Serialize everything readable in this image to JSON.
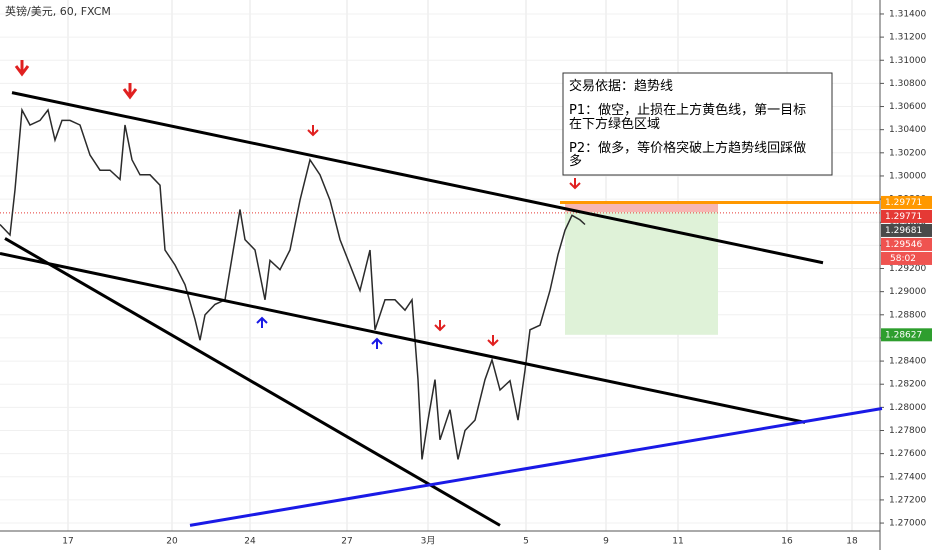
{
  "header": "英镑/美元, 60, FXCM",
  "chart_data": {
    "type": "line",
    "xlim": [
      0,
      176
    ],
    "ylim": [
      1.2694,
      1.315
    ],
    "xticks": [
      {
        "value": 13.6,
        "label": "17"
      },
      {
        "value": 34.4,
        "label": "20"
      },
      {
        "value": 50,
        "label": "24"
      },
      {
        "value": 69.4,
        "label": "27"
      },
      {
        "value": 85.6,
        "label": "3月"
      },
      {
        "value": 105.2,
        "label": "5"
      },
      {
        "value": 121.2,
        "label": "9"
      },
      {
        "value": 135.6,
        "label": "11"
      },
      {
        "value": 157.4,
        "label": "16"
      },
      {
        "value": 170.4,
        "label": "18"
      }
    ],
    "yticks": [
      {
        "value": 1.27,
        "label": "1.27000"
      },
      {
        "value": 1.272,
        "label": "1.27200"
      },
      {
        "value": 1.274,
        "label": "1.27400"
      },
      {
        "value": 1.276,
        "label": "1.27600"
      },
      {
        "value": 1.278,
        "label": "1.27800"
      },
      {
        "value": 1.28,
        "label": "1.28000"
      },
      {
        "value": 1.282,
        "label": "1.28200"
      },
      {
        "value": 1.284,
        "label": "1.28400"
      },
      {
        "value": 1.286,
        "label": "1.28600"
      },
      {
        "value": 1.288,
        "label": "1.28800"
      },
      {
        "value": 1.29,
        "label": "1.29000"
      },
      {
        "value": 1.292,
        "label": "1.29200"
      },
      {
        "value": 1.294,
        "label": "1.29400"
      },
      {
        "value": 1.296,
        "label": "1.29600"
      },
      {
        "value": 1.298,
        "label": "1.29800"
      },
      {
        "value": 1.3,
        "label": "1.30000"
      },
      {
        "value": 1.302,
        "label": "1.30200"
      },
      {
        "value": 1.304,
        "label": "1.30400"
      },
      {
        "value": 1.306,
        "label": "1.30600"
      },
      {
        "value": 1.308,
        "label": "1.30800"
      },
      {
        "value": 1.31,
        "label": "1.31000"
      },
      {
        "value": 1.312,
        "label": "1.31200"
      },
      {
        "value": 1.314,
        "label": "1.31400"
      }
    ],
    "grid": true,
    "series": [
      {
        "color": "#2b2b2b",
        "x": [
          0,
          2,
          3,
          4.4,
          6,
          8,
          9.6,
          11,
          12.4,
          14,
          16,
          18,
          20,
          22,
          24,
          25,
          26.4,
          28,
          30,
          32,
          33,
          35,
          37,
          39,
          40,
          41,
          43,
          45,
          47,
          48,
          49,
          51,
          53,
          54,
          56,
          58,
          60,
          62,
          64,
          66,
          68,
          70,
          72,
          74,
          75,
          77,
          79,
          81,
          82.4,
          83.6,
          84.4,
          85.6,
          87,
          88,
          90,
          91.6,
          93,
          95,
          97,
          98.4,
          100,
          102,
          103.6,
          105,
          106,
          108,
          110,
          111.6,
          113,
          114.4,
          116,
          117
        ],
        "values": [
          1.2958,
          1.2949,
          1.2988,
          1.3057,
          1.3044,
          1.3048,
          1.3057,
          1.3031,
          1.3048,
          1.3048,
          1.3044,
          1.3018,
          1.3005,
          1.3005,
          1.2997,
          1.3044,
          1.3014,
          1.3001,
          1.3001,
          1.2992,
          1.2936,
          1.2923,
          1.2906,
          1.2876,
          1.2858,
          1.288,
          1.2889,
          1.2893,
          1.2945,
          1.2971,
          1.2945,
          1.2936,
          1.2893,
          1.2927,
          1.2919,
          1.2936,
          1.2979,
          1.3014,
          1.3001,
          1.2979,
          1.2945,
          1.2923,
          1.2901,
          1.2936,
          1.2867,
          1.2893,
          1.2893,
          1.2884,
          1.2893,
          1.2824,
          1.2755,
          1.2789,
          1.2824,
          1.2772,
          1.2798,
          1.2755,
          1.278,
          1.2789,
          1.2824,
          1.2841,
          1.2815,
          1.2823,
          1.2789,
          1.2832,
          1.2867,
          1.2871,
          1.2901,
          1.2932,
          1.2953,
          1.2966,
          1.2962,
          1.2958
        ]
      }
    ],
    "trendlines": [
      {
        "color": "#000000",
        "x": [
          2.4,
          164.6
        ],
        "values": [
          1.3072,
          1.2925
        ]
      },
      {
        "color": "#000000",
        "x": [
          0,
          161
        ],
        "values": [
          1.2933,
          1.2787
        ]
      },
      {
        "color": "#000000",
        "x": [
          1,
          100
        ],
        "values": [
          1.2946,
          1.2698
        ]
      },
      {
        "color": "#1a1ae6",
        "x": [
          38,
          176.4
        ],
        "values": [
          1.2698,
          1.2799
        ]
      },
      {
        "color": "#ff9800",
        "x": [
          112,
          176
        ],
        "values": [
          1.29771,
          1.29771
        ]
      }
    ],
    "boxes": [
      {
        "color": "#f7b6b2",
        "x": [
          113,
          143.6
        ],
        "values": [
          1.29771,
          1.29688
        ]
      },
      {
        "color": "#dff2d8",
        "x": [
          113,
          143.6
        ],
        "values": [
          1.29688,
          1.28627
        ]
      }
    ],
    "current_line": 1.29681,
    "price_tags": [
      {
        "value": 1.29771,
        "label": "1.29771",
        "color": "#ff9800"
      },
      {
        "value": 1.29771,
        "label": "1.29771",
        "color": "#e53935",
        "offset": 14
      },
      {
        "value": 1.29681,
        "label": "1.29681",
        "color": "#4a4a4a",
        "offset": 28
      },
      {
        "value": 1.29546,
        "label": "1.29546",
        "color": "#ef5350",
        "offset": 42
      },
      {
        "value": 1.28627,
        "label": "1.28627",
        "color": "#2e9e2e"
      }
    ],
    "countdown": "58:02"
  },
  "note": {
    "lines": [
      "交易依据：趋势线",
      "P1：做空，止损在上方黄色线，第一目标",
      "在下方绿色区域",
      "P2：做多，等价格突破上方趋势线回踩做",
      "多"
    ]
  }
}
